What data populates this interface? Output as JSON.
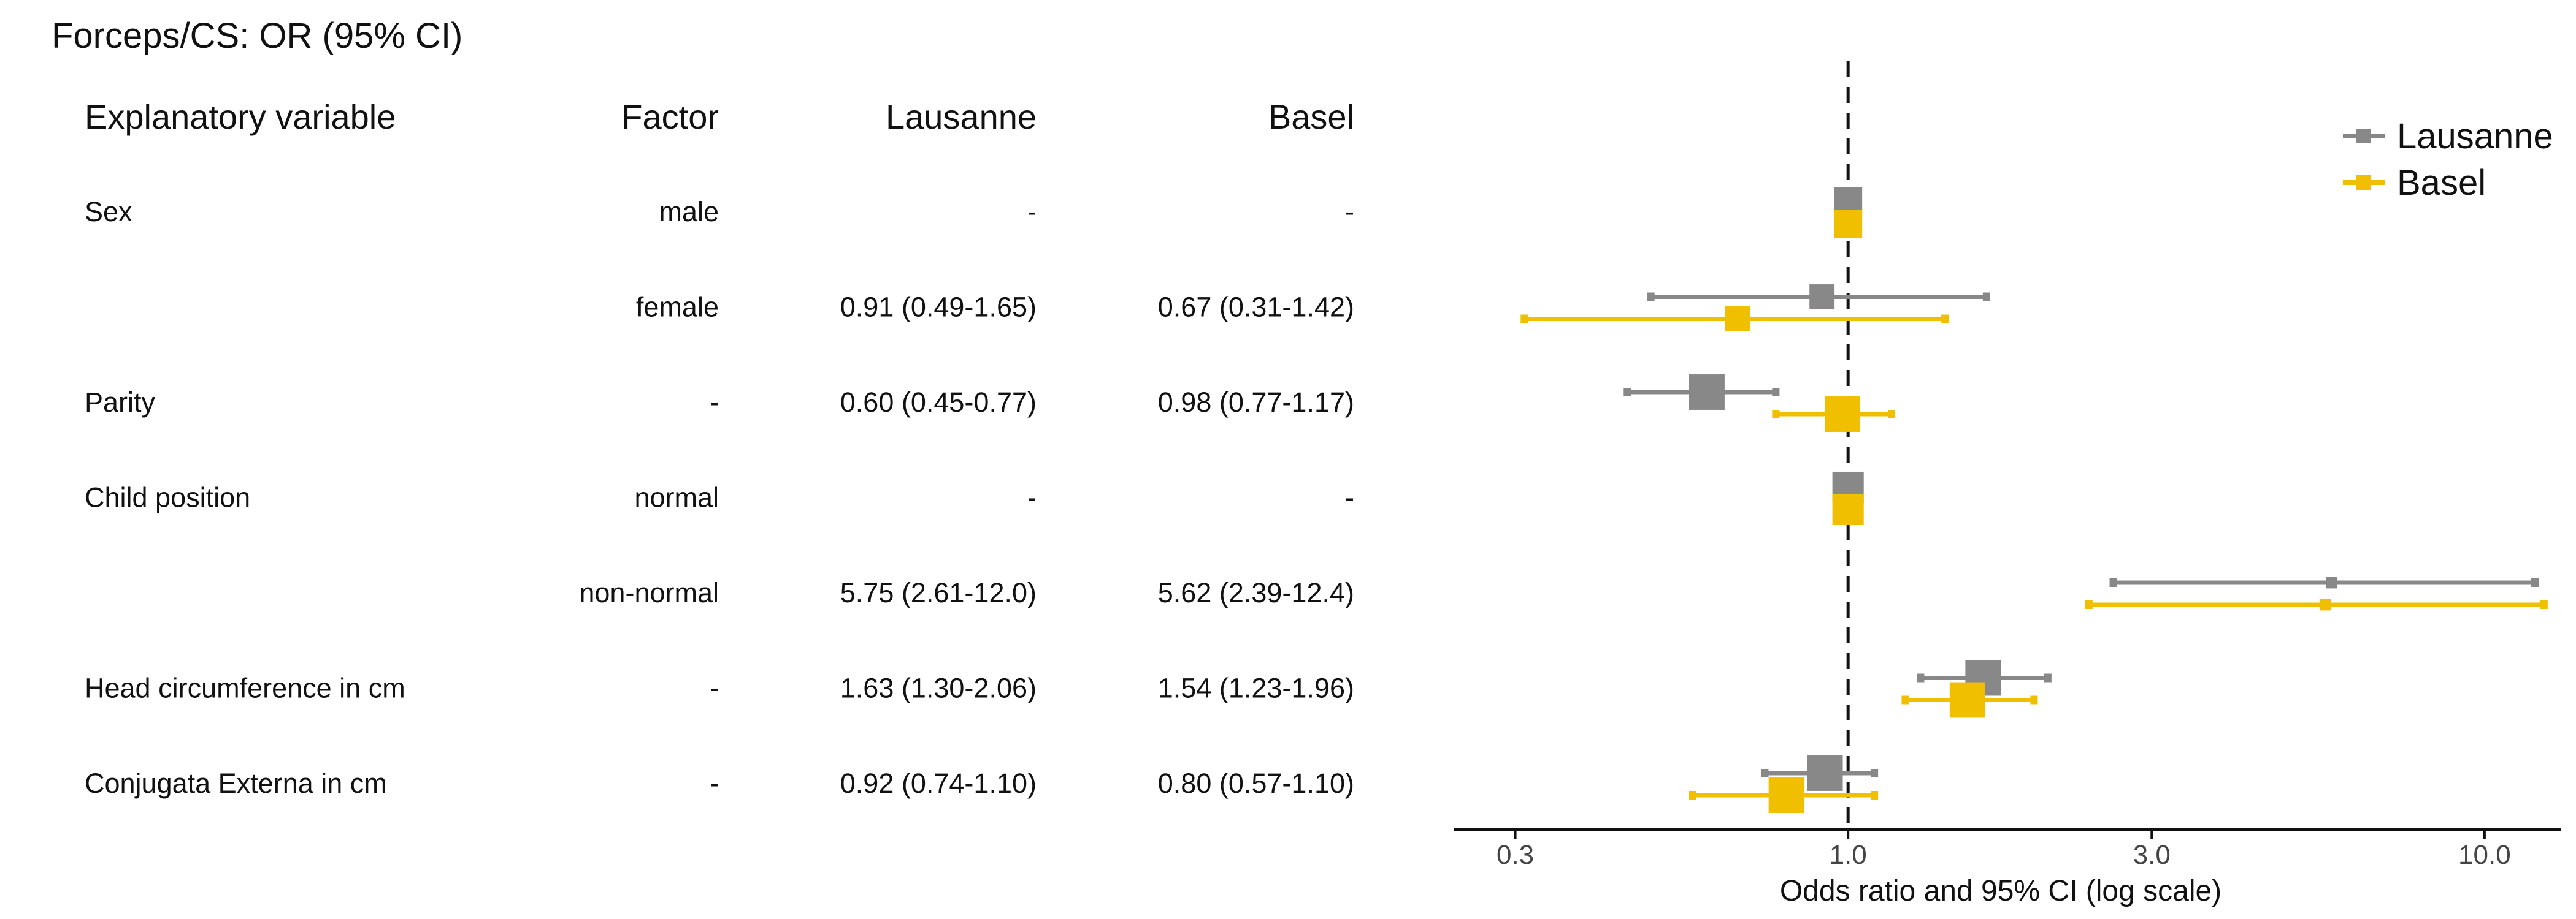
{
  "chart_data": {
    "type": "forest",
    "title": "Forceps/CS: OR (95% CI)",
    "table": {
      "headers": {
        "variable": "Explanatory variable",
        "factor": "Factor",
        "lausanne": "Lausanne",
        "basel": "Basel"
      },
      "rows": [
        {
          "variable": "Sex",
          "factor": "male",
          "lausanne": "-",
          "basel": "-"
        },
        {
          "variable": "",
          "factor": "female",
          "lausanne": "0.91 (0.49-1.65)",
          "basel": "0.67 (0.31-1.42)"
        },
        {
          "variable": "Parity",
          "factor": "-",
          "lausanne": "0.60 (0.45-0.77)",
          "basel": "0.98 (0.77-1.17)"
        },
        {
          "variable": "Child position",
          "factor": "normal",
          "lausanne": "-",
          "basel": "-"
        },
        {
          "variable": "",
          "factor": "non-normal",
          "lausanne": "5.75 (2.61-12.0)",
          "basel": "5.62 (2.39-12.4)"
        },
        {
          "variable": "Head circumference in cm",
          "factor": "-",
          "lausanne": "1.63 (1.30-2.06)",
          "basel": "1.54 (1.23-1.96)"
        },
        {
          "variable": "Conjugata Externa in cm",
          "factor": "-",
          "lausanne": "0.92 (0.74-1.10)",
          "basel": "0.80 (0.57-1.10)"
        }
      ]
    },
    "series": [
      {
        "name": "Lausanne",
        "color": "#888888",
        "points": [
          {
            "or": 1.0,
            "lo": null,
            "hi": null,
            "size": 1.0,
            "reference": true
          },
          {
            "or": 0.91,
            "lo": 0.49,
            "hi": 1.65,
            "size": 0.85
          },
          {
            "or": 0.6,
            "lo": 0.45,
            "hi": 0.77,
            "size": 1.35
          },
          {
            "or": 1.0,
            "lo": null,
            "hi": null,
            "size": 1.15,
            "reference": true
          },
          {
            "or": 5.75,
            "lo": 2.61,
            "hi": 12.0,
            "size": 0.2
          },
          {
            "or": 1.63,
            "lo": 1.3,
            "hi": 2.06,
            "size": 1.35
          },
          {
            "or": 0.92,
            "lo": 0.74,
            "hi": 1.1,
            "size": 1.35
          }
        ]
      },
      {
        "name": "Basel",
        "color": "#EFBF00",
        "points": [
          {
            "or": 1.0,
            "lo": null,
            "hi": null,
            "size": 1.0,
            "reference": true
          },
          {
            "or": 0.67,
            "lo": 0.31,
            "hi": 1.42,
            "size": 0.85
          },
          {
            "or": 0.98,
            "lo": 0.77,
            "hi": 1.17,
            "size": 1.35
          },
          {
            "or": 1.0,
            "lo": null,
            "hi": null,
            "size": 1.15,
            "reference": true
          },
          {
            "or": 5.62,
            "lo": 2.39,
            "hi": 12.4,
            "size": 0.2
          },
          {
            "or": 1.54,
            "lo": 1.23,
            "hi": 1.96,
            "size": 1.35
          },
          {
            "or": 0.8,
            "lo": 0.57,
            "hi": 1.1,
            "size": 1.35
          }
        ]
      }
    ],
    "xscale": "log",
    "xlim": [
      0.24,
      13.2
    ],
    "xticks": [
      0.3,
      1.0,
      3.0,
      10.0
    ],
    "xtick_labels": [
      "0.3",
      "1.0",
      "3.0",
      "10.0"
    ],
    "reference_line": 1.0,
    "xlabel": "Odds ratio and 95% CI (log scale)",
    "ylabel": "",
    "legend_position": "top-right",
    "grid": false
  }
}
